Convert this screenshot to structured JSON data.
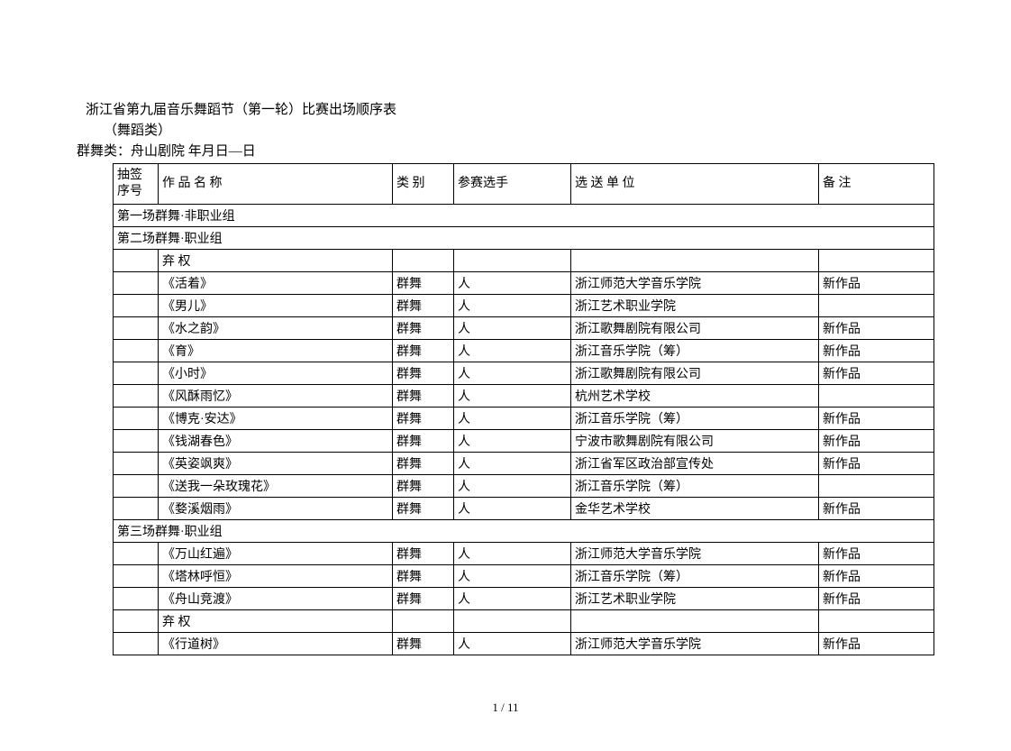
{
  "document": {
    "title_line1": "浙江省第九届音乐舞蹈节（第一轮）比赛出场顺序表",
    "title_line2": "（舞蹈类）",
    "title_line3": "群舞类：舟山剧院  年月日—日",
    "page_number": "1 / 11"
  },
  "table": {
    "headers": {
      "col_num": "抽签序号",
      "col_name": "作 品 名 称",
      "col_type": "类 别",
      "col_player": "参赛选手",
      "col_org": "选 送 单 位",
      "col_remark": "备 注"
    },
    "section1": "第一场群舞·非职业组",
    "section2": "第二场群舞·职业组",
    "section3": "第三场群舞·职业组",
    "abstain": "弃 权",
    "rows_s2": [
      {
        "name": "《活着》",
        "type": "群舞",
        "player": "人",
        "org": "浙江师范大学音乐学院",
        "remark": "新作品"
      },
      {
        "name": "《男儿》",
        "type": "群舞",
        "player": "人",
        "org": "浙江艺术职业学院",
        "remark": ""
      },
      {
        "name": "《水之韵》",
        "type": "群舞",
        "player": "人",
        "org": "浙江歌舞剧院有限公司",
        "remark": "新作品"
      },
      {
        "name": "《育》",
        "type": "群舞",
        "player": "人",
        "org": "浙江音乐学院（筹）",
        "remark": "新作品"
      },
      {
        "name": "《小时》",
        "type": "群舞",
        "player": "人",
        "org": "浙江歌舞剧院有限公司",
        "remark": "新作品"
      },
      {
        "name": "《风酥雨忆》",
        "type": "群舞",
        "player": "人",
        "org": "杭州艺术学校",
        "remark": ""
      },
      {
        "name": "《博克·安达》",
        "type": "群舞",
        "player": "人",
        "org": "浙江音乐学院（筹）",
        "remark": "新作品"
      },
      {
        "name": "《钱湖春色》",
        "type": "群舞",
        "player": "人",
        "org": "宁波市歌舞剧院有限公司",
        "remark": "新作品"
      },
      {
        "name": "《英姿飒爽》",
        "type": "群舞",
        "player": "人",
        "org": "浙江省军区政治部宣传处",
        "remark": "新作品"
      },
      {
        "name": "《送我一朵玫瑰花》",
        "type": "群舞",
        "player": "人",
        "org": "浙江音乐学院（筹）",
        "remark": ""
      },
      {
        "name": "《婺溪烟雨》",
        "type": "群舞",
        "player": "人",
        "org": "金华艺术学校",
        "remark": "新作品"
      }
    ],
    "rows_s3": [
      {
        "name": "《万山红遍》",
        "type": "群舞",
        "player": "人",
        "org": "浙江师范大学音乐学院",
        "remark": "新作品"
      },
      {
        "name": "《塔林呼恒》",
        "type": "群舞",
        "player": "人",
        "org": "浙江音乐学院（筹）",
        "remark": "新作品"
      },
      {
        "name": "《舟山竞渡》",
        "type": "群舞",
        "player": "人",
        "org": "浙江艺术职业学院",
        "remark": "新作品"
      }
    ],
    "rows_s3b": [
      {
        "name": "《行道树》",
        "type": "群舞",
        "player": "人",
        "org": "浙江师范大学音乐学院",
        "remark": "新作品"
      }
    ]
  }
}
